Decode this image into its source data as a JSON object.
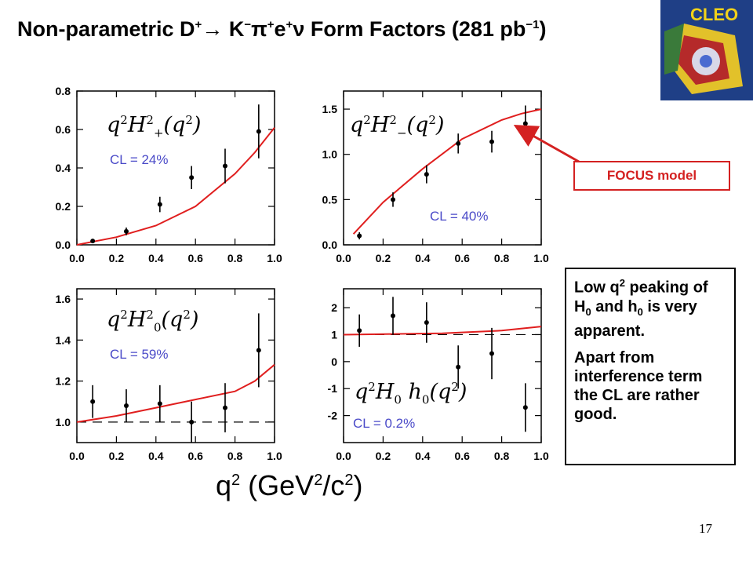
{
  "title": {
    "main": "Non-parametric D",
    "sup1": "+",
    "arrow": "→ K",
    "sup2": "−",
    "pi": "π",
    "sup3": "+",
    "e": "e",
    "sup4": "+",
    "nu": "ν Form Factors (281 pb",
    "sup5": "−1",
    "close": ")"
  },
  "logo": {
    "text": "CLEO"
  },
  "annotation": {
    "focus": "FOCUS model"
  },
  "note": {
    "line1a": "Low q",
    "line1sup": "2",
    "line1b": " peaking of H",
    "line1sub1": "0",
    "line1c": " and h",
    "line1sub2": "0",
    "line1d": " is very apparent.",
    "line2": "Apart from interference term the CL are rather good."
  },
  "xaxis": {
    "a": "q",
    "asup": "2",
    "b": "  (GeV",
    "bsup": "2",
    "c": "/c",
    "csup": "2",
    "d": ")"
  },
  "page_number": "17",
  "colors": {
    "model": "#e01e1e",
    "cl_text": "#4a4ac8",
    "data": "#000000",
    "logo_bg": "#1f3f86",
    "logo_text": "#f2d21a"
  },
  "chart_data": [
    {
      "type": "scatter",
      "formula": {
        "pre": "q",
        "sup": "2",
        "H": "H",
        "hsup": "2",
        "hsub": "+",
        "post": "(q",
        "psup": "2",
        "end": ")"
      },
      "cl_label": "CL = 24%",
      "xlim": [
        0.0,
        1.0
      ],
      "ylim": [
        0.0,
        0.8
      ],
      "xticks": [
        "0.0",
        "0.2",
        "0.4",
        "0.6",
        "0.8",
        "1.0"
      ],
      "yticks": [
        "0.0",
        "0.2",
        "0.4",
        "0.6",
        "0.8"
      ],
      "points": [
        {
          "x": 0.08,
          "y": 0.02,
          "err": 0.01
        },
        {
          "x": 0.25,
          "y": 0.07,
          "err": 0.02
        },
        {
          "x": 0.42,
          "y": 0.21,
          "err": 0.04
        },
        {
          "x": 0.58,
          "y": 0.35,
          "err": 0.06
        },
        {
          "x": 0.75,
          "y": 0.41,
          "err": 0.09
        },
        {
          "x": 0.92,
          "y": 0.59,
          "err": 0.14
        }
      ],
      "model": [
        [
          0.0,
          0.0
        ],
        [
          0.2,
          0.04
        ],
        [
          0.4,
          0.1
        ],
        [
          0.6,
          0.2
        ],
        [
          0.8,
          0.37
        ],
        [
          0.9,
          0.48
        ],
        [
          1.0,
          0.61
        ]
      ],
      "dashed": null
    },
    {
      "type": "scatter",
      "formula": {
        "pre": "q",
        "sup": "2",
        "H": "H",
        "hsup": "2",
        "hsub": "−",
        "post": "(q",
        "psup": "2",
        "end": ")"
      },
      "cl_label": "CL = 40%",
      "xlim": [
        0.0,
        1.0
      ],
      "ylim": [
        0.0,
        1.7
      ],
      "xticks": [
        "0.0",
        "0.2",
        "0.4",
        "0.6",
        "0.8",
        "1.0"
      ],
      "yticks": [
        "0.0",
        "0.5",
        "1.0",
        "1.5"
      ],
      "points": [
        {
          "x": 0.08,
          "y": 0.1,
          "err": 0.04
        },
        {
          "x": 0.25,
          "y": 0.5,
          "err": 0.08
        },
        {
          "x": 0.42,
          "y": 0.78,
          "err": 0.1
        },
        {
          "x": 0.58,
          "y": 1.12,
          "err": 0.11
        },
        {
          "x": 0.75,
          "y": 1.14,
          "err": 0.12
        },
        {
          "x": 0.92,
          "y": 1.34,
          "err": 0.2
        }
      ],
      "model": [
        [
          0.05,
          0.12
        ],
        [
          0.2,
          0.47
        ],
        [
          0.4,
          0.84
        ],
        [
          0.6,
          1.17
        ],
        [
          0.8,
          1.38
        ],
        [
          0.9,
          1.45
        ],
        [
          1.0,
          1.5
        ]
      ],
      "dashed": null
    },
    {
      "type": "scatter",
      "formula": {
        "pre": "q",
        "sup": "2",
        "H": "H",
        "hsup": "2",
        "hsub": "0",
        "post": "(q",
        "psup": "2",
        "end": ")"
      },
      "cl_label": "CL = 59%",
      "xlim": [
        0.0,
        1.0
      ],
      "ylim": [
        0.9,
        1.65
      ],
      "xticks": [
        "0.0",
        "0.2",
        "0.4",
        "0.6",
        "0.8",
        "1.0"
      ],
      "yticks": [
        "1.0",
        "1.2",
        "1.4",
        "1.6"
      ],
      "points": [
        {
          "x": 0.08,
          "y": 1.1,
          "err": 0.08
        },
        {
          "x": 0.25,
          "y": 1.08,
          "err": 0.08
        },
        {
          "x": 0.42,
          "y": 1.09,
          "err": 0.09
        },
        {
          "x": 0.58,
          "y": 1.0,
          "err": 0.1
        },
        {
          "x": 0.75,
          "y": 1.07,
          "err": 0.12
        },
        {
          "x": 0.92,
          "y": 1.35,
          "err": 0.18
        }
      ],
      "model": [
        [
          0.0,
          1.0
        ],
        [
          0.2,
          1.03
        ],
        [
          0.4,
          1.07
        ],
        [
          0.6,
          1.11
        ],
        [
          0.8,
          1.15
        ],
        [
          0.9,
          1.2
        ],
        [
          1.0,
          1.28
        ]
      ],
      "dashed": 1.0
    },
    {
      "type": "scatter",
      "formula": {
        "pre": "q",
        "sup": "2",
        "H": "H",
        "hsup": "",
        "hsub": "0",
        "post": " h",
        "psub": "0",
        "psup2": "(q",
        "psup": "2",
        "end": ")"
      },
      "cl_label": "CL = 0.2%",
      "xlim": [
        0.0,
        1.0
      ],
      "ylim": [
        -3.0,
        2.7
      ],
      "xticks": [
        "0.0",
        "0.2",
        "0.4",
        "0.6",
        "0.8",
        "1.0"
      ],
      "yticks": [
        "-2",
        "-1",
        "0",
        "1",
        "2"
      ],
      "points": [
        {
          "x": 0.08,
          "y": 1.15,
          "err": 0.6
        },
        {
          "x": 0.25,
          "y": 1.7,
          "err": 0.7
        },
        {
          "x": 0.42,
          "y": 1.45,
          "err": 0.75
        },
        {
          "x": 0.58,
          "y": -0.2,
          "err": 0.8
        },
        {
          "x": 0.75,
          "y": 0.3,
          "err": 0.95
        },
        {
          "x": 0.92,
          "y": -1.7,
          "err": 0.9
        }
      ],
      "model": [
        [
          0.0,
          1.0
        ],
        [
          0.5,
          1.05
        ],
        [
          0.8,
          1.15
        ],
        [
          1.0,
          1.3
        ]
      ],
      "dashed": 1.0
    }
  ]
}
